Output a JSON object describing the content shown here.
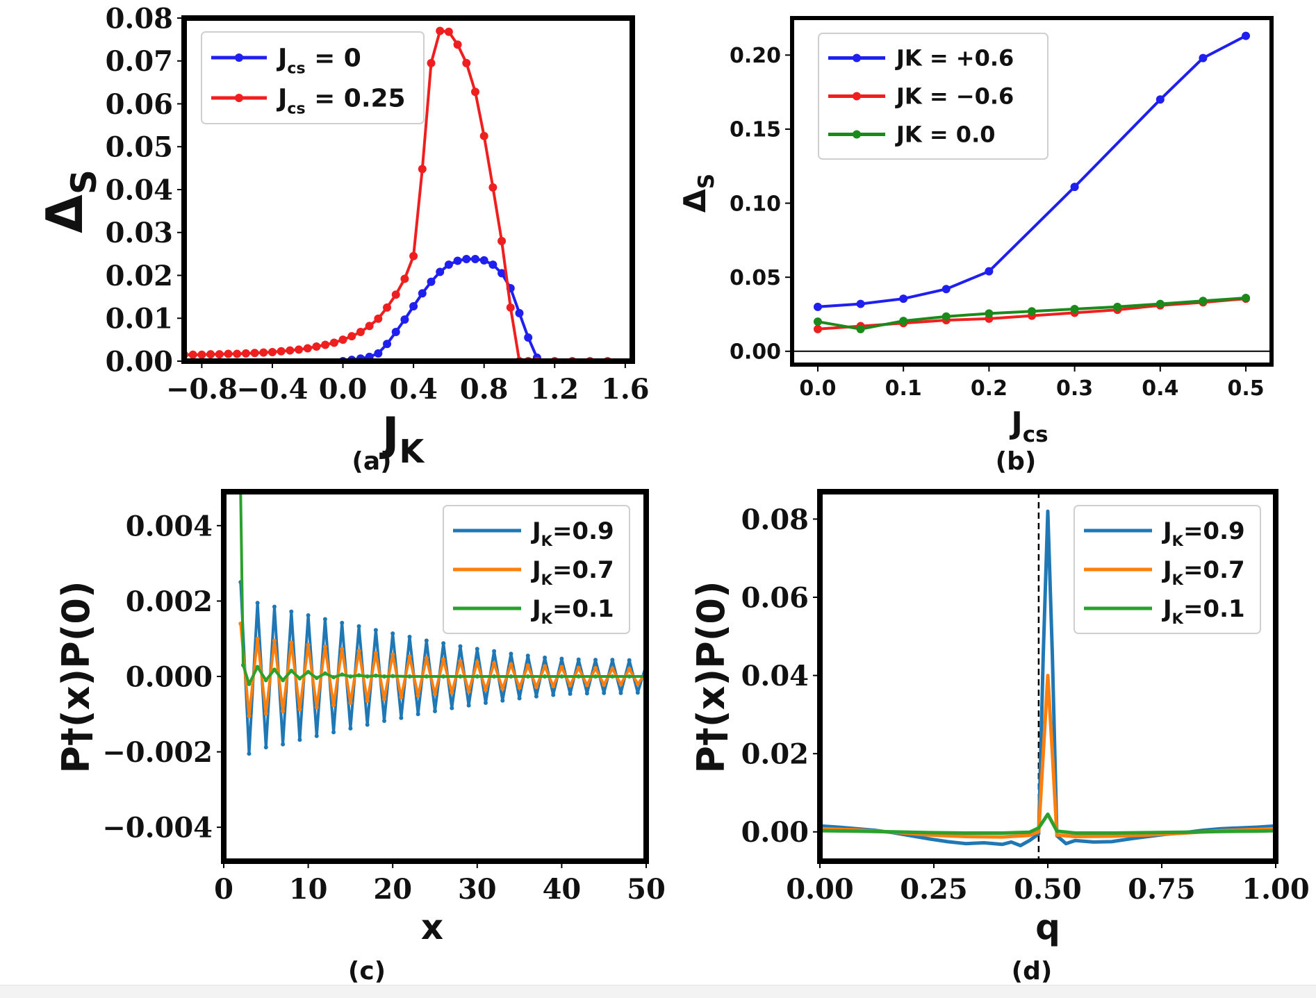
{
  "chart_data": [
    {
      "panel": "(a)",
      "type": "line",
      "xlabel": "J",
      "xlabel_sub": "K",
      "ylabel": "Δ",
      "ylabel_sub": "S",
      "xlim": [
        -0.9,
        1.64
      ],
      "ylim": [
        0.0,
        0.08
      ],
      "xticks": [
        "−0.8",
        "−0.4",
        "0.0",
        "0.4",
        "0.8",
        "1.2",
        "1.6"
      ],
      "xtick_values": [
        -0.8,
        -0.4,
        0.0,
        0.4,
        0.8,
        1.2,
        1.6
      ],
      "yticks": [
        "0.00",
        "0.01",
        "0.02",
        "0.03",
        "0.04",
        "0.05",
        "0.06",
        "0.07",
        "0.08"
      ],
      "ytick_values": [
        0,
        0.01,
        0.02,
        0.03,
        0.04,
        0.05,
        0.06,
        0.07,
        0.08
      ],
      "legend": "top-left",
      "series": [
        {
          "name": "J",
          "name_sub": "cs",
          "name_rest": " = 0",
          "color": "#1f1ff0",
          "x": [
            0.0,
            0.05,
            0.1,
            0.15,
            0.2,
            0.25,
            0.3,
            0.35,
            0.4,
            0.45,
            0.5,
            0.55,
            0.6,
            0.65,
            0.7,
            0.75,
            0.8,
            0.85,
            0.9,
            0.95,
            1.0,
            1.05,
            1.1
          ],
          "y": [
            0.0,
            0.0003,
            0.0006,
            0.001,
            0.0018,
            0.004,
            0.0068,
            0.0097,
            0.0128,
            0.0158,
            0.0185,
            0.0208,
            0.0225,
            0.0234,
            0.0238,
            0.0238,
            0.0235,
            0.0225,
            0.0205,
            0.017,
            0.0112,
            0.0055,
            0.0008
          ]
        },
        {
          "name": "J",
          "name_sub": "cs",
          "name_rest": " = 0.25",
          "color": "#f01f1f",
          "x": [
            -0.9,
            -0.85,
            -0.8,
            -0.75,
            -0.7,
            -0.65,
            -0.6,
            -0.55,
            -0.5,
            -0.45,
            -0.4,
            -0.35,
            -0.3,
            -0.25,
            -0.2,
            -0.15,
            -0.1,
            -0.05,
            0.0,
            0.05,
            0.1,
            0.15,
            0.2,
            0.25,
            0.3,
            0.35,
            0.4,
            0.45,
            0.5,
            0.55,
            0.6,
            0.65,
            0.7,
            0.75,
            0.8,
            0.85,
            0.9,
            0.95,
            1.0,
            1.05,
            1.1,
            1.2,
            1.3,
            1.4,
            1.5
          ],
          "y": [
            0.0015,
            0.0015,
            0.0015,
            0.0016,
            0.0016,
            0.0017,
            0.0017,
            0.0018,
            0.0019,
            0.002,
            0.0021,
            0.0023,
            0.0025,
            0.0027,
            0.003,
            0.0034,
            0.0038,
            0.0043,
            0.005,
            0.0058,
            0.0068,
            0.0082,
            0.0099,
            0.0125,
            0.0155,
            0.0192,
            0.0245,
            0.0448,
            0.0695,
            0.077,
            0.0768,
            0.0738,
            0.0695,
            0.0628,
            0.0525,
            0.0405,
            0.028,
            0.0125,
            0.0,
            0.0,
            0.0,
            0.0,
            0.0,
            0.0,
            0.0
          ]
        }
      ],
      "caption": "(a)"
    },
    {
      "panel": "(b)",
      "type": "line",
      "xlabel": "J",
      "xlabel_sub": "cs",
      "ylabel": "Δ",
      "ylabel_sub": "S",
      "xlim": [
        -0.03,
        0.53
      ],
      "ylim": [
        -0.009,
        0.225
      ],
      "xticks": [
        "0.0",
        "0.1",
        "0.2",
        "0.3",
        "0.4",
        "0.5"
      ],
      "xtick_values": [
        0,
        0.1,
        0.2,
        0.3,
        0.4,
        0.5
      ],
      "yticks": [
        "0.00",
        "0.05",
        "0.10",
        "0.15",
        "0.20"
      ],
      "ytick_values": [
        0,
        0.05,
        0.1,
        0.15,
        0.2
      ],
      "hline": 0.0,
      "legend": "top-left",
      "series": [
        {
          "name": "JK = +0.6",
          "color": "#1f1ff0",
          "x": [
            0.0,
            0.05,
            0.1,
            0.15,
            0.2,
            0.3,
            0.4,
            0.45,
            0.5
          ],
          "y": [
            0.03,
            0.032,
            0.0355,
            0.042,
            0.054,
            0.111,
            0.17,
            0.198,
            0.213
          ]
        },
        {
          "name": "JK = −0.6",
          "color": "#f01f1f",
          "x": [
            0.0,
            0.05,
            0.1,
            0.15,
            0.2,
            0.25,
            0.3,
            0.35,
            0.4,
            0.45,
            0.5
          ],
          "y": [
            0.015,
            0.017,
            0.019,
            0.021,
            0.022,
            0.024,
            0.026,
            0.028,
            0.031,
            0.033,
            0.0355
          ]
        },
        {
          "name": "JK = 0.0",
          "color": "#1b8a1b",
          "x": [
            0.0,
            0.05,
            0.1,
            0.15,
            0.2,
            0.25,
            0.3,
            0.35,
            0.4,
            0.45,
            0.5
          ],
          "y": [
            0.02,
            0.015,
            0.0205,
            0.0235,
            0.0255,
            0.027,
            0.0285,
            0.03,
            0.032,
            0.034,
            0.036
          ]
        }
      ],
      "caption": "(b)"
    },
    {
      "panel": "(c)",
      "type": "line",
      "xlabel": "x",
      "ylabel": "P†(x)P(0)",
      "xlim": [
        0,
        50
      ],
      "ylim": [
        -0.0049,
        0.0049
      ],
      "xticks": [
        "0",
        "10",
        "20",
        "30",
        "40",
        "50"
      ],
      "xtick_values": [
        0,
        10,
        20,
        30,
        40,
        50
      ],
      "yticks": [
        "−0.004",
        "−0.002",
        "0.000",
        "0.002",
        "0.004"
      ],
      "ytick_values": [
        -0.004,
        -0.002,
        0,
        0.002,
        0.004
      ],
      "legend": "top-right",
      "series": [
        {
          "name": "J",
          "name_sub": "K",
          "name_rest": "=0.9",
          "color": "#1f77b4",
          "x": [
            2,
            3,
            4,
            5,
            6,
            7,
            8,
            9,
            10,
            11,
            12,
            13,
            14,
            15,
            16,
            17,
            18,
            19,
            20,
            21,
            22,
            23,
            24,
            25,
            26,
            27,
            28,
            29,
            30,
            31,
            32,
            33,
            34,
            35,
            36,
            37,
            38,
            39,
            40,
            41,
            42,
            43,
            44,
            45,
            46,
            47,
            48,
            49,
            50
          ],
          "y": [
            0.0025,
            -0.00205,
            0.00195,
            -0.00188,
            0.00185,
            -0.0018,
            0.00172,
            -0.00168,
            0.00162,
            -0.00158,
            0.00152,
            -0.00148,
            0.00142,
            -0.00138,
            0.00133,
            -0.00128,
            0.00123,
            -0.00118,
            0.00114,
            -0.0011,
            0.00105,
            -0.001,
            0.00095,
            -0.00092,
            0.00088,
            -0.00084,
            0.0008,
            -0.00077,
            0.00073,
            -0.0007,
            0.00067,
            -0.00064,
            0.0006,
            -0.00058,
            0.00055,
            -0.00053,
            0.0005,
            -0.00049,
            0.00047,
            -0.00046,
            0.00045,
            -0.00045,
            0.00044,
            -0.00044,
            0.00044,
            -0.00044,
            0.00043,
            -0.00043,
            0.0003
          ]
        },
        {
          "name": "J",
          "name_sub": "K",
          "name_rest": "=0.7",
          "color": "#ff7f0e",
          "x": [
            2,
            3,
            4,
            5,
            6,
            7,
            8,
            9,
            10,
            11,
            12,
            13,
            14,
            15,
            16,
            17,
            18,
            19,
            20,
            21,
            22,
            23,
            24,
            25,
            26,
            27,
            28,
            29,
            30,
            31,
            32,
            33,
            34,
            35,
            36,
            37,
            38,
            39,
            40,
            41,
            42,
            43,
            44,
            45,
            46,
            47,
            48,
            49,
            50
          ],
          "y": [
            0.0014,
            -0.00105,
            0.001,
            -0.00098,
            0.00095,
            -0.00092,
            0.0009,
            -0.00087,
            0.00084,
            -0.00082,
            0.00079,
            -0.00076,
            0.00073,
            -0.0007,
            0.00068,
            -0.00065,
            0.00062,
            -0.0006,
            0.00058,
            -0.00055,
            0.00053,
            -0.00051,
            0.00049,
            -0.00047,
            0.00045,
            -0.00043,
            0.00041,
            -0.0004,
            0.00038,
            -0.00036,
            0.00035,
            -0.00033,
            0.00032,
            -0.0003,
            0.00029,
            -0.00028,
            0.00027,
            -0.00026,
            0.00025,
            -0.00024,
            0.00023,
            -0.00023,
            0.00022,
            -0.00022,
            0.00021,
            -0.00021,
            0.0002,
            -0.0002,
            0.0001
          ]
        },
        {
          "name": "J",
          "name_sub": "K",
          "name_rest": "=0.1",
          "color": "#2ca02c",
          "x": [
            2,
            2.3,
            3,
            4,
            5,
            6,
            7,
            8,
            9,
            10,
            11,
            12,
            13,
            14,
            15,
            16,
            17,
            18,
            19,
            20,
            22,
            24,
            26,
            28,
            30,
            32,
            34,
            36,
            38,
            40,
            42,
            44,
            46,
            48,
            50
          ],
          "y": [
            0.0049,
            0.0003,
            -0.0002,
            0.00025,
            -0.0001,
            0.00018,
            -0.0001,
            0.00015,
            -5e-05,
            0.00012,
            -4e-05,
            8e-05,
            -2e-05,
            5e-05,
            0.0,
            3e-05,
            0.0,
            2e-05,
            0.0,
            1e-05,
            0.0,
            0.0,
            0.0,
            0.0,
            0.0,
            0.0,
            0.0,
            0.0,
            0.0,
            0.0,
            0.0,
            0.0,
            0.0,
            0.0,
            0.0
          ]
        }
      ],
      "caption": "(c)"
    },
    {
      "panel": "(d)",
      "type": "line",
      "xlabel": "q",
      "ylabel": "P†(x)P(0)",
      "xlim": [
        0.0,
        1.0
      ],
      "ylim": [
        -0.0075,
        0.087
      ],
      "xticks": [
        "0.00",
        "0.25",
        "0.50",
        "0.75",
        "1.00"
      ],
      "xtick_values": [
        0,
        0.25,
        0.5,
        0.75,
        1.0
      ],
      "yticks": [
        "0.00",
        "0.02",
        "0.04",
        "0.06",
        "0.08"
      ],
      "ytick_values": [
        0,
        0.02,
        0.04,
        0.06,
        0.08
      ],
      "vline": 0.48,
      "legend": "top-right",
      "series": [
        {
          "name": "J",
          "name_sub": "K",
          "name_rest": "=0.9",
          "color": "#1f77b4",
          "x": [
            0.0,
            0.04,
            0.08,
            0.12,
            0.16,
            0.2,
            0.24,
            0.28,
            0.32,
            0.36,
            0.4,
            0.42,
            0.44,
            0.46,
            0.48,
            0.49,
            0.5,
            0.51,
            0.52,
            0.54,
            0.56,
            0.6,
            0.64,
            0.68,
            0.72,
            0.76,
            0.8,
            0.84,
            0.88,
            0.92,
            0.96,
            1.0
          ],
          "y": [
            0.0015,
            0.0012,
            0.0008,
            0.0004,
            -0.0002,
            -0.001,
            -0.0018,
            -0.0025,
            -0.003,
            -0.0028,
            -0.0032,
            -0.0026,
            -0.0035,
            -0.0022,
            -0.0005,
            0.045,
            0.082,
            0.045,
            -0.001,
            -0.003,
            -0.0022,
            -0.0026,
            -0.0025,
            -0.0018,
            -0.0012,
            -0.0006,
            -0.0002,
            0.0004,
            0.0008,
            0.001,
            0.0012,
            0.0015
          ]
        },
        {
          "name": "J",
          "name_sub": "K",
          "name_rest": "=0.7",
          "color": "#ff7f0e",
          "x": [
            0.0,
            0.08,
            0.16,
            0.24,
            0.32,
            0.4,
            0.46,
            0.48,
            0.49,
            0.5,
            0.51,
            0.52,
            0.56,
            0.64,
            0.72,
            0.8,
            0.88,
            0.96,
            1.0
          ],
          "y": [
            0.0008,
            0.0005,
            -0.0001,
            -0.0008,
            -0.0012,
            -0.0013,
            -0.0009,
            0.0,
            0.02,
            0.04,
            0.02,
            -0.0008,
            -0.0012,
            -0.0011,
            -0.0008,
            -0.0003,
            0.0003,
            0.0006,
            0.0008
          ]
        },
        {
          "name": "J",
          "name_sub": "K",
          "name_rest": "=0.1",
          "color": "#2ca02c",
          "x": [
            0.0,
            0.08,
            0.16,
            0.24,
            0.32,
            0.4,
            0.46,
            0.48,
            0.5,
            0.52,
            0.56,
            0.64,
            0.72,
            0.8,
            0.88,
            0.96,
            1.0
          ],
          "y": [
            0.0003,
            0.0002,
            0.0,
            -0.0002,
            -0.0003,
            -0.0003,
            -0.0001,
            0.001,
            0.0045,
            0.0002,
            -0.0003,
            -0.0003,
            -0.0002,
            -0.0001,
            0.0001,
            0.0002,
            0.0003
          ]
        }
      ],
      "caption": "(d)"
    }
  ]
}
